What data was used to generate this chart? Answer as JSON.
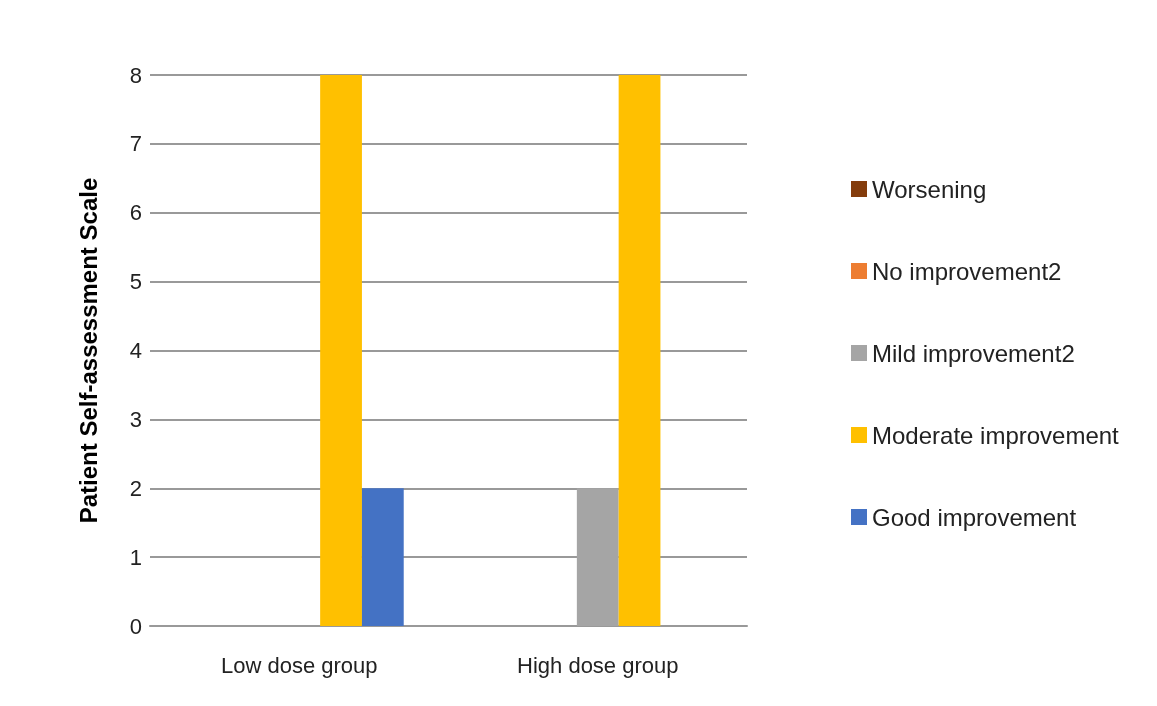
{
  "chart_data": {
    "type": "bar",
    "ylabel": "Patient Self-assessment Scale",
    "categories": [
      "Low dose group",
      "High dose group"
    ],
    "series": [
      {
        "name": "Worsening",
        "color": "#843c0c",
        "values": [
          0,
          0
        ]
      },
      {
        "name": "No improvement2",
        "color": "#ed7d31",
        "values": [
          0,
          0
        ]
      },
      {
        "name": "Mild improvement2",
        "color": "#a5a5a5",
        "values": [
          0,
          2
        ]
      },
      {
        "name": "Moderate improvement",
        "color": "#ffc000",
        "values": [
          8,
          8
        ]
      },
      {
        "name": "Good improvement",
        "color": "#4472c4",
        "values": [
          2,
          0
        ]
      }
    ],
    "ylim": [
      0,
      8
    ],
    "yticks": [
      0,
      1,
      2,
      3,
      4,
      5,
      6,
      7,
      8
    ],
    "grid": "y",
    "legend": "right"
  }
}
